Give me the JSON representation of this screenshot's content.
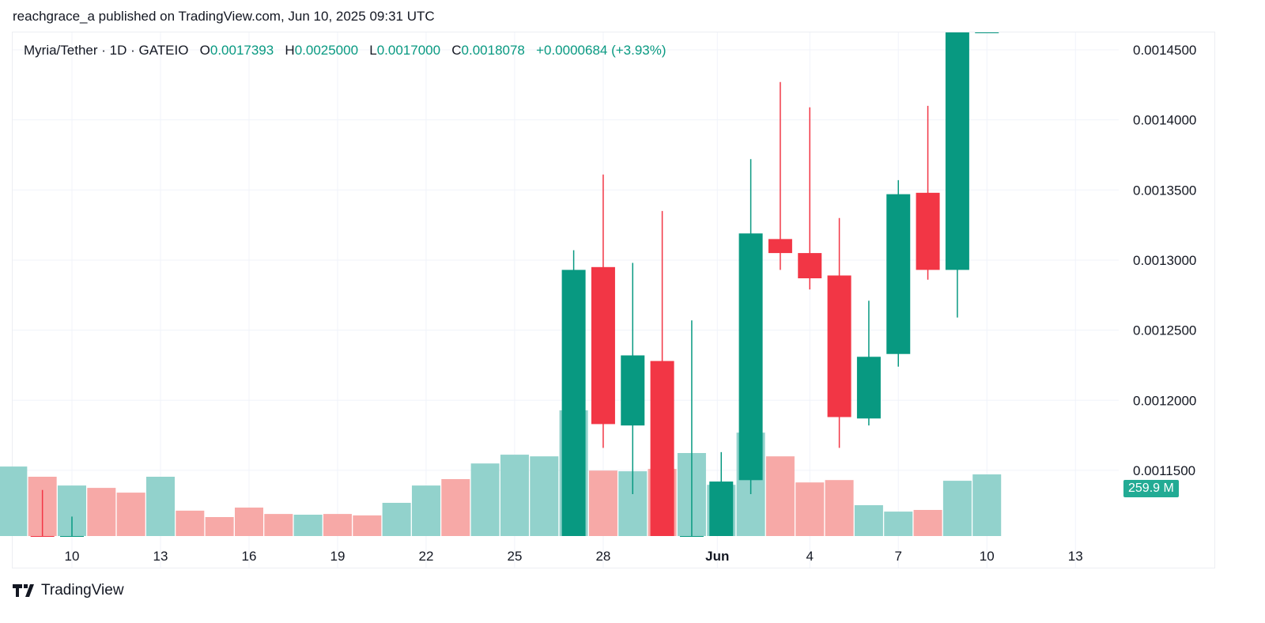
{
  "header": {
    "published": "reachgrace_a published on TradingView.com, Jun 10, 2025 09:31 UTC"
  },
  "legend": {
    "symbol": "Myria/Tether · 1D · GATEIO",
    "o_label": "O",
    "o": "0.0017393",
    "h_label": "H",
    "h": "0.0025000",
    "l_label": "L",
    "l": "0.0017000",
    "c_label": "C",
    "c": "0.0018078",
    "change": "+0.0000684 (+3.93%)"
  },
  "footer": {
    "brand": "TradingView"
  },
  "colors": {
    "up": "#089981",
    "down": "#f23645",
    "up_volume": "#92d2cc",
    "down_volume": "#f7a9a7",
    "volume_tag": "#22ab94"
  },
  "chart_data": {
    "type": "candlestick",
    "price_axis": {
      "ticks": [
        "0.0014500",
        "0.0014000",
        "0.0013500",
        "0.0013000",
        "0.0012500",
        "0.0012000",
        "0.0011500"
      ],
      "range": [
        0.0011033,
        0.001463
      ]
    },
    "time_axis": {
      "ticks": [
        "10",
        "13",
        "16",
        "19",
        "22",
        "25",
        "28",
        "Jun",
        "4",
        "7",
        "10",
        "13"
      ]
    },
    "volume_last_label": "259.9 M",
    "candles": [
      {
        "date": "2025-05-09",
        "o": 0.00109,
        "h": 0.001136,
        "l": 0.00106,
        "c": 0.00107
      },
      {
        "date": "2025-05-10",
        "o": 0.00107,
        "h": 0.001117,
        "l": 0.00106,
        "c": 0.00109
      },
      {
        "date": "2025-05-27",
        "o": 0.00108,
        "h": 0.001307,
        "l": 0.00105,
        "c": 0.001293
      },
      {
        "date": "2025-05-28",
        "o": 0.001295,
        "h": 0.001361,
        "l": 0.001166,
        "c": 0.001183
      },
      {
        "date": "2025-05-29",
        "o": 0.001182,
        "h": 0.001298,
        "l": 0.001133,
        "c": 0.001232
      },
      {
        "date": "2025-05-30",
        "o": 0.001228,
        "h": 0.001335,
        "l": 0.00104,
        "c": 0.00106
      },
      {
        "date": "2025-05-31",
        "o": 0.00106,
        "h": 0.001257,
        "l": 0.001,
        "c": 0.00107
      },
      {
        "date": "2025-06-01",
        "o": 0.00107,
        "h": 0.001163,
        "l": 0.00105,
        "c": 0.001142
      },
      {
        "date": "2025-06-02",
        "o": 0.001143,
        "h": 0.001372,
        "l": 0.001133,
        "c": 0.001319
      },
      {
        "date": "2025-06-03",
        "o": 0.001315,
        "h": 0.001427,
        "l": 0.001293,
        "c": 0.001305
      },
      {
        "date": "2025-06-04",
        "o": 0.001305,
        "h": 0.001409,
        "l": 0.001279,
        "c": 0.001287
      },
      {
        "date": "2025-06-05",
        "o": 0.001289,
        "h": 0.00133,
        "l": 0.001166,
        "c": 0.001188
      },
      {
        "date": "2025-06-06",
        "o": 0.001187,
        "h": 0.001271,
        "l": 0.001182,
        "c": 0.001231
      },
      {
        "date": "2025-06-07",
        "o": 0.001233,
        "h": 0.001357,
        "l": 0.001224,
        "c": 0.001347
      },
      {
        "date": "2025-06-08",
        "o": 0.001348,
        "h": 0.00141,
        "l": 0.001286,
        "c": 0.001293
      },
      {
        "date": "2025-06-09",
        "o": 0.001293,
        "h": 0.0017393,
        "l": 0.001259,
        "c": 0.0017393
      },
      {
        "date": "2025-06-10",
        "o": 0.0017393,
        "h": 0.0025,
        "l": 0.0017,
        "c": 0.0018078
      }
    ],
    "volume": [
      {
        "date": "2025-05-08",
        "v": 293,
        "dir": "up"
      },
      {
        "date": "2025-05-09",
        "v": 250,
        "dir": "down"
      },
      {
        "date": "2025-05-10",
        "v": 213,
        "dir": "up"
      },
      {
        "date": "2025-05-11",
        "v": 203,
        "dir": "down"
      },
      {
        "date": "2025-05-12",
        "v": 183,
        "dir": "down"
      },
      {
        "date": "2025-05-13",
        "v": 250,
        "dir": "up"
      },
      {
        "date": "2025-05-14",
        "v": 107,
        "dir": "down"
      },
      {
        "date": "2025-05-15",
        "v": 80,
        "dir": "down"
      },
      {
        "date": "2025-05-16",
        "v": 120,
        "dir": "down"
      },
      {
        "date": "2025-05-17",
        "v": 93,
        "dir": "down"
      },
      {
        "date": "2025-05-18",
        "v": 90,
        "dir": "up"
      },
      {
        "date": "2025-05-19",
        "v": 93,
        "dir": "down"
      },
      {
        "date": "2025-05-20",
        "v": 87,
        "dir": "down"
      },
      {
        "date": "2025-05-21",
        "v": 140,
        "dir": "up"
      },
      {
        "date": "2025-05-22",
        "v": 213,
        "dir": "up"
      },
      {
        "date": "2025-05-23",
        "v": 240,
        "dir": "down"
      },
      {
        "date": "2025-05-24",
        "v": 306,
        "dir": "up"
      },
      {
        "date": "2025-05-25",
        "v": 343,
        "dir": "up"
      },
      {
        "date": "2025-05-26",
        "v": 336,
        "dir": "up"
      },
      {
        "date": "2025-05-27",
        "v": 530,
        "dir": "up"
      },
      {
        "date": "2025-05-28",
        "v": 276,
        "dir": "down"
      },
      {
        "date": "2025-05-29",
        "v": 273,
        "dir": "up"
      },
      {
        "date": "2025-05-30",
        "v": 283,
        "dir": "down"
      },
      {
        "date": "2025-05-31",
        "v": 350,
        "dir": "up"
      },
      {
        "date": "2025-06-01",
        "v": 216,
        "dir": "up"
      },
      {
        "date": "2025-06-02",
        "v": 436,
        "dir": "up"
      },
      {
        "date": "2025-06-03",
        "v": 336,
        "dir": "down"
      },
      {
        "date": "2025-06-04",
        "v": 226,
        "dir": "down"
      },
      {
        "date": "2025-06-05",
        "v": 236,
        "dir": "down"
      },
      {
        "date": "2025-06-06",
        "v": 130,
        "dir": "up"
      },
      {
        "date": "2025-06-07",
        "v": 103,
        "dir": "up"
      },
      {
        "date": "2025-06-08",
        "v": 110,
        "dir": "down"
      },
      {
        "date": "2025-06-09",
        "v": 233,
        "dir": "up"
      },
      {
        "date": "2025-06-10",
        "v": 259.9,
        "dir": "up"
      }
    ],
    "volume_unit": "M"
  }
}
